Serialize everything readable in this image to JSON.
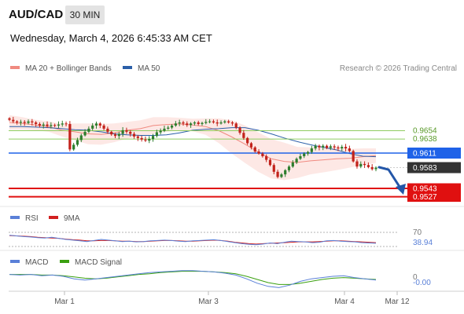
{
  "header": {
    "symbol": "AUD/CAD",
    "timeframe": "30 MIN",
    "datetime": "Wednesday, March 4, 2026 6:45:33 AM CET",
    "credit": "Research © 2026 Trading Central"
  },
  "colors": {
    "candle_up": "#2d7d2d",
    "candle_down": "#c2221b",
    "ma20": "#f08a80",
    "ma50": "#2b5fa8",
    "bollinger_fill": "#fde4e0",
    "support": "#e01010",
    "resistance": "#1f62e8",
    "green_level": "#8fcc60",
    "last_price": "#333333",
    "rsi": "#5a80d8",
    "rsi_ma": "#d22020",
    "macd": "#5a80d8",
    "macd_signal": "#3aa010"
  },
  "chart_data": [
    {
      "type": "line",
      "title": "AUD/CAD",
      "legend": [
        "MA 20 + Bollinger Bands",
        "MA 50"
      ],
      "x_ticks": [
        "Mar 1",
        "Mar 3",
        "Mar 4",
        "Mar 12"
      ],
      "ylim": [
        0.952,
        0.969
      ],
      "y_labels": [
        "0.9654",
        "0.9638",
        "0.9611",
        "0.9583",
        "0.9543",
        "0.9527"
      ],
      "levels": [
        {
          "value": 0.9654,
          "label": "0.9654",
          "kind": "green"
        },
        {
          "value": 0.9638,
          "label": "0.9638",
          "kind": "green"
        },
        {
          "value": 0.9611,
          "label": "0.9611",
          "kind": "resistance"
        },
        {
          "value": 0.9583,
          "label": "0.9583",
          "kind": "last"
        },
        {
          "value": 0.9543,
          "label": "0.9543",
          "kind": "support"
        },
        {
          "value": 0.9527,
          "label": "0.9527",
          "kind": "support"
        }
      ],
      "close": [
        0.9675,
        0.9672,
        0.967,
        0.9671,
        0.9669,
        0.9672,
        0.967,
        0.9667,
        0.9664,
        0.9666,
        0.9663,
        0.9665,
        0.9664,
        0.9666,
        0.9668,
        0.9667,
        0.9618,
        0.9627,
        0.9636,
        0.9645,
        0.9652,
        0.9658,
        0.9664,
        0.9668,
        0.9664,
        0.9658,
        0.9652,
        0.9647,
        0.9644,
        0.9648,
        0.9655,
        0.9652,
        0.9648,
        0.9643,
        0.964,
        0.9637,
        0.9635,
        0.9638,
        0.9644,
        0.9651,
        0.9654,
        0.9658,
        0.966,
        0.9664,
        0.9668,
        0.967,
        0.9668,
        0.9665,
        0.9668,
        0.967,
        0.9667,
        0.9669,
        0.9671,
        0.9672,
        0.967,
        0.9668,
        0.967,
        0.9672,
        0.967,
        0.9668,
        0.966,
        0.965,
        0.964,
        0.963,
        0.9622,
        0.9614,
        0.961,
        0.9605,
        0.9598,
        0.9588,
        0.9575,
        0.9565,
        0.957,
        0.9578,
        0.9585,
        0.9593,
        0.96,
        0.9605,
        0.961,
        0.9613,
        0.962,
        0.9625,
        0.9622,
        0.9625,
        0.9621,
        0.9624,
        0.9622,
        0.962,
        0.9623,
        0.962,
        0.9615,
        0.9595,
        0.9585,
        0.959,
        0.9588,
        0.9584,
        0.958,
        0.9583
      ],
      "ma50": [
        0.9662,
        0.9662,
        0.9661,
        0.966,
        0.9658,
        0.9656,
        0.9655,
        0.9652,
        0.9648,
        0.9646,
        0.9645,
        0.9645,
        0.9646,
        0.965,
        0.9655,
        0.9657,
        0.9658,
        0.966,
        0.966,
        0.9655,
        0.9648,
        0.964,
        0.9633,
        0.9627,
        0.9622,
        0.9617,
        0.961,
        0.9605,
        0.9604
      ],
      "ma20": [
        0.967,
        0.9668,
        0.9665,
        0.9662,
        0.9655,
        0.9652,
        0.9648,
        0.9647,
        0.965,
        0.9655,
        0.9658,
        0.9664,
        0.9666,
        0.9667,
        0.9665,
        0.9662,
        0.9654,
        0.9642,
        0.9628,
        0.9613,
        0.96,
        0.9595,
        0.9593,
        0.9596,
        0.9598,
        0.96,
        0.9601,
        0.9604,
        0.9606
      ]
    },
    {
      "type": "line",
      "legend": [
        "RSI",
        "9MA"
      ],
      "ylim": [
        0,
        100
      ],
      "y_labels": [
        "70",
        "38.94"
      ],
      "rsi": [
        62,
        60,
        58,
        57,
        55,
        54,
        56,
        53,
        50,
        48,
        46,
        44,
        47,
        50,
        48,
        46,
        44,
        45,
        43,
        44,
        46,
        47,
        48,
        47,
        45,
        44,
        46,
        47,
        48,
        49,
        47,
        44,
        41,
        38,
        36,
        35,
        37,
        40,
        38,
        42,
        45,
        44,
        43,
        41,
        42,
        46,
        47,
        45,
        44,
        43,
        41,
        40,
        39
      ],
      "rsi_ma": [
        61,
        60,
        59,
        58,
        56,
        55,
        54,
        53,
        51,
        49,
        48,
        46,
        46,
        47,
        47,
        46,
        45,
        45,
        44,
        44,
        45,
        46,
        47,
        47,
        46,
        45,
        45,
        46,
        47,
        48,
        47,
        45,
        42,
        40,
        38,
        37,
        38,
        39,
        40,
        41,
        42,
        43,
        43,
        43,
        44,
        45,
        46,
        46,
        45,
        44,
        43,
        42,
        41
      ]
    },
    {
      "type": "line",
      "legend": [
        "MACD",
        "MACD Signal"
      ],
      "y_labels": [
        "0",
        "-0.00"
      ],
      "macd": [
        0.0003,
        0.0002,
        0.0003,
        0.0001,
        0.0002,
        0.0,
        -0.0004,
        -0.0006,
        -0.0004,
        -0.0002,
        0.0,
        0.0002,
        0.0004,
        0.0006,
        0.0007,
        0.0008,
        0.0009,
        0.0009,
        0.0008,
        0.0007,
        0.0005,
        0.0002,
        -0.0004,
        -0.0011,
        -0.0016,
        -0.0018,
        -0.0014,
        -0.0008,
        -0.0004,
        -0.0002,
        0.0,
        0.0001,
        -0.0002,
        -0.0004,
        -0.0006
      ],
      "signal": [
        0.0003,
        0.0003,
        0.0003,
        0.0002,
        0.0002,
        0.0001,
        -0.0001,
        -0.0003,
        -0.0004,
        -0.0003,
        -0.0001,
        0.0001,
        0.0003,
        0.0004,
        0.0006,
        0.0007,
        0.0008,
        0.0008,
        0.0008,
        0.0007,
        0.0006,
        0.0004,
        0.0,
        -0.0005,
        -0.001,
        -0.0013,
        -0.0013,
        -0.0011,
        -0.0008,
        -0.0005,
        -0.0003,
        -0.0002,
        -0.0003,
        -0.0004,
        -0.0005
      ]
    }
  ]
}
